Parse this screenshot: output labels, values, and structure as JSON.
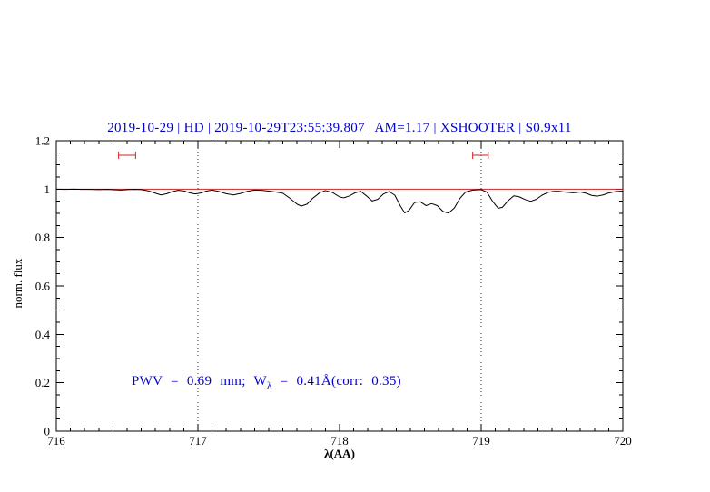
{
  "chart_data": {
    "type": "line",
    "title": "2019-10-29 | HD | 2019-10-29T23:55:39.807 | AM=1.17 | XSHOOTER | S0.9x11",
    "xlabel": "λ(AA)",
    "ylabel": "norm. flux",
    "xlim": [
      716,
      720
    ],
    "ylim": [
      0,
      1.2
    ],
    "grid": false,
    "x_ticks": [
      {
        "v": 716,
        "label": "716"
      },
      {
        "v": 717,
        "label": "717"
      },
      {
        "v": 718,
        "label": "718"
      },
      {
        "v": 719,
        "label": "719"
      },
      {
        "v": 720,
        "label": "720"
      }
    ],
    "y_ticks": [
      {
        "v": 0,
        "label": "0"
      },
      {
        "v": 0.2,
        "label": "0.2"
      },
      {
        "v": 0.4,
        "label": "0.4"
      },
      {
        "v": 0.6,
        "label": "0.6"
      },
      {
        "v": 0.8,
        "label": "0.8"
      },
      {
        "v": 1,
        "label": "1"
      },
      {
        "v": 1.2,
        "label": "1.2"
      }
    ],
    "x_minor_step": 0.1,
    "y_minor_step": 0.05,
    "vlines": [
      717,
      719
    ],
    "markers": [
      {
        "x1": 716.44,
        "x2": 716.56,
        "y": 1.14
      },
      {
        "x1": 718.94,
        "x2": 719.05,
        "y": 1.14
      }
    ],
    "annotation": {
      "prefix": "PWV = 0.69 mm; W",
      "sub": "λ",
      "suffix": " = 0.41Å(corr: 0.35)"
    },
    "colors": {
      "title": "#0000cd",
      "annotation": "#0000cd",
      "model": "#cc2222",
      "marker": "#cc2222",
      "spectrum": "#000000",
      "frame": "#000000"
    },
    "series": [
      {
        "name": "telluric-model",
        "color": "#cc2222",
        "points": [
          [
            716.0,
            1.0
          ],
          [
            720.0,
            1.0
          ]
        ]
      },
      {
        "name": "observed-spectrum",
        "color": "#000000",
        "points": [
          [
            716.0,
            1.0
          ],
          [
            716.06,
            0.999
          ],
          [
            716.12,
            1.0
          ],
          [
            716.18,
            0.999
          ],
          [
            716.24,
            0.999
          ],
          [
            716.3,
            0.998
          ],
          [
            716.36,
            0.999
          ],
          [
            716.42,
            0.997
          ],
          [
            716.46,
            0.996
          ],
          [
            716.5,
            0.998
          ],
          [
            716.55,
            0.999
          ],
          [
            716.6,
            0.998
          ],
          [
            716.65,
            0.993
          ],
          [
            716.7,
            0.983
          ],
          [
            716.74,
            0.976
          ],
          [
            716.78,
            0.981
          ],
          [
            716.82,
            0.99
          ],
          [
            716.86,
            0.995
          ],
          [
            716.9,
            0.993
          ],
          [
            716.94,
            0.985
          ],
          [
            716.98,
            0.98
          ],
          [
            717.02,
            0.984
          ],
          [
            717.06,
            0.992
          ],
          [
            717.1,
            0.996
          ],
          [
            717.15,
            0.99
          ],
          [
            717.2,
            0.981
          ],
          [
            717.25,
            0.976
          ],
          [
            717.3,
            0.982
          ],
          [
            717.35,
            0.991
          ],
          [
            717.4,
            0.996
          ],
          [
            717.45,
            0.995
          ],
          [
            717.5,
            0.992
          ],
          [
            717.55,
            0.988
          ],
          [
            717.6,
            0.983
          ],
          [
            717.65,
            0.962
          ],
          [
            717.7,
            0.938
          ],
          [
            717.73,
            0.93
          ],
          [
            717.77,
            0.938
          ],
          [
            717.81,
            0.962
          ],
          [
            717.86,
            0.985
          ],
          [
            717.9,
            0.994
          ],
          [
            717.95,
            0.986
          ],
          [
            718.0,
            0.968
          ],
          [
            718.03,
            0.964
          ],
          [
            718.07,
            0.972
          ],
          [
            718.11,
            0.985
          ],
          [
            718.15,
            0.991
          ],
          [
            718.19,
            0.972
          ],
          [
            718.23,
            0.951
          ],
          [
            718.27,
            0.958
          ],
          [
            718.31,
            0.98
          ],
          [
            718.35,
            0.99
          ],
          [
            718.39,
            0.975
          ],
          [
            718.43,
            0.93
          ],
          [
            718.46,
            0.902
          ],
          [
            718.49,
            0.912
          ],
          [
            718.53,
            0.945
          ],
          [
            718.57,
            0.948
          ],
          [
            718.61,
            0.932
          ],
          [
            718.65,
            0.94
          ],
          [
            718.69,
            0.932
          ],
          [
            718.73,
            0.908
          ],
          [
            718.77,
            0.901
          ],
          [
            718.81,
            0.922
          ],
          [
            718.85,
            0.962
          ],
          [
            718.89,
            0.988
          ],
          [
            718.94,
            0.996
          ],
          [
            719.0,
            0.998
          ],
          [
            719.04,
            0.988
          ],
          [
            719.08,
            0.95
          ],
          [
            719.12,
            0.921
          ],
          [
            719.15,
            0.925
          ],
          [
            719.19,
            0.952
          ],
          [
            719.23,
            0.972
          ],
          [
            719.27,
            0.968
          ],
          [
            719.31,
            0.957
          ],
          [
            719.35,
            0.95
          ],
          [
            719.39,
            0.958
          ],
          [
            719.43,
            0.975
          ],
          [
            719.47,
            0.986
          ],
          [
            719.51,
            0.991
          ],
          [
            719.55,
            0.991
          ],
          [
            719.6,
            0.987
          ],
          [
            719.65,
            0.985
          ],
          [
            719.7,
            0.988
          ],
          [
            719.74,
            0.983
          ],
          [
            719.78,
            0.974
          ],
          [
            719.82,
            0.971
          ],
          [
            719.86,
            0.976
          ],
          [
            719.9,
            0.984
          ],
          [
            719.95,
            0.99
          ],
          [
            720.0,
            0.992
          ]
        ]
      }
    ]
  }
}
